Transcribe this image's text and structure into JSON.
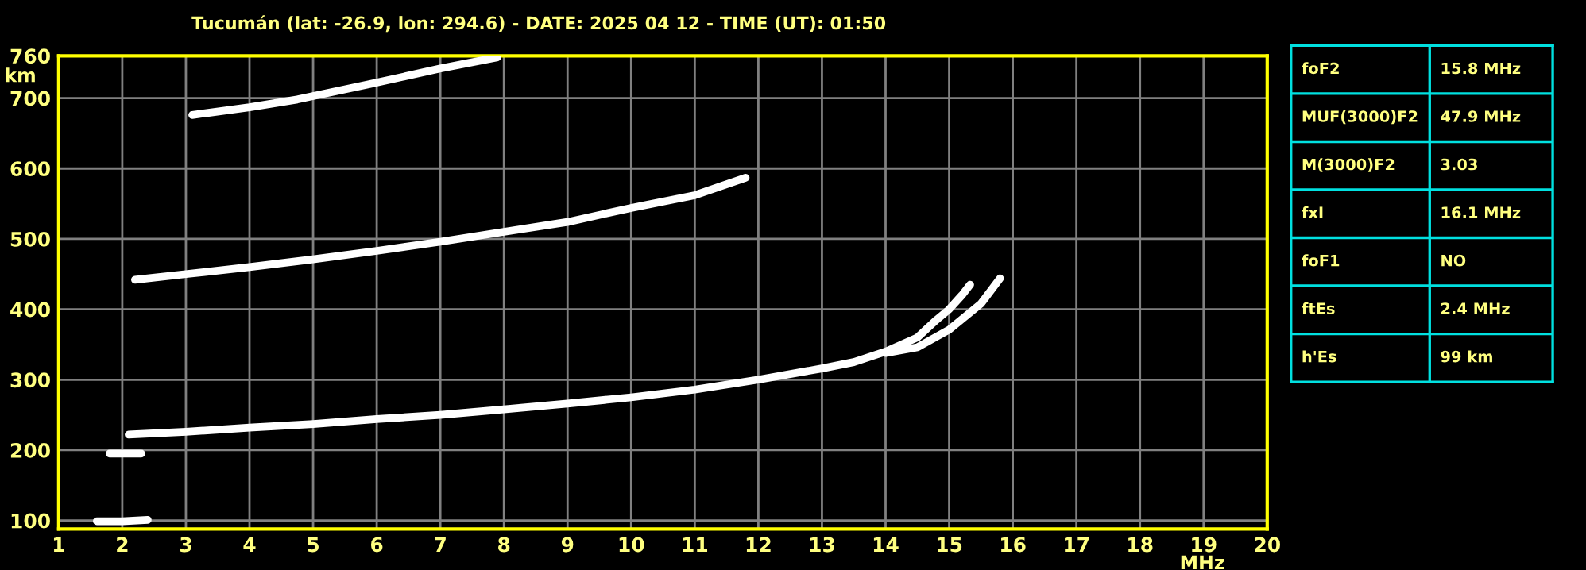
{
  "chart_data": [
    {
      "type": "line",
      "title": "Tucumán (lat: -26.9, lon: 294.6) - DATE: 2025 04 12 - TIME (UT): 01:50",
      "xlabel": "MHz",
      "ylabel": "km",
      "xlim": [
        1,
        20
      ],
      "ylim": [
        88,
        760
      ],
      "xticks": [
        1,
        2,
        3,
        4,
        5,
        6,
        7,
        8,
        9,
        10,
        11,
        12,
        13,
        14,
        15,
        16,
        17,
        18,
        19,
        20
      ],
      "yticks": [
        100,
        200,
        300,
        400,
        500,
        600,
        700,
        760
      ],
      "grid": true,
      "line_style": "solid",
      "marker": "none",
      "series": [
        {
          "color": "#ffffff",
          "x": [
            2.1,
            3,
            4,
            5,
            6,
            7,
            8,
            9,
            10,
            11,
            12,
            13,
            13.5,
            14.0,
            14.5,
            14.8,
            15.0,
            15.2,
            15.33
          ],
          "values": [
            222,
            226,
            232,
            237,
            244,
            250,
            258,
            266,
            275,
            286,
            300,
            316,
            325,
            340,
            360,
            385,
            400,
            420,
            435
          ]
        },
        {
          "color": "#ffffff",
          "x": [
            14.0,
            14.5,
            15.0,
            15.5,
            15.8
          ],
          "values": [
            338,
            346,
            371,
            408,
            444
          ]
        },
        {
          "color": "#ffffff",
          "x": [
            2.2,
            3,
            4,
            5,
            6,
            7,
            8,
            9,
            10,
            11,
            11.8
          ],
          "values": [
            442,
            450,
            460,
            471,
            483,
            496,
            510,
            524,
            544,
            562,
            587
          ]
        },
        {
          "color": "#ffffff",
          "x": [
            3.1,
            4,
            4.75,
            5.9,
            7.0,
            7.9
          ],
          "values": [
            676,
            687,
            698,
            720,
            742,
            758
          ]
        },
        {
          "color": "#ffffff",
          "x": [
            1.6,
            2.0,
            2.4
          ],
          "values": [
            99,
            99,
            101
          ]
        },
        {
          "color": "#ffffff",
          "x": [
            1.8,
            2.3
          ],
          "values": [
            195,
            195
          ]
        }
      ]
    },
    {
      "type": "other",
      "categories": [
        "foF2",
        "MUF(3000)F2",
        "M(3000)F2",
        "fxI",
        "foF1",
        "ftEs",
        "h'Es"
      ],
      "value_labels": [
        "15.8 MHz",
        "47.9 MHz",
        "3.03",
        "16.1 MHz",
        "NO",
        "2.4 MHz",
        "99 km"
      ],
      "color": "#00e0e0"
    }
  ]
}
